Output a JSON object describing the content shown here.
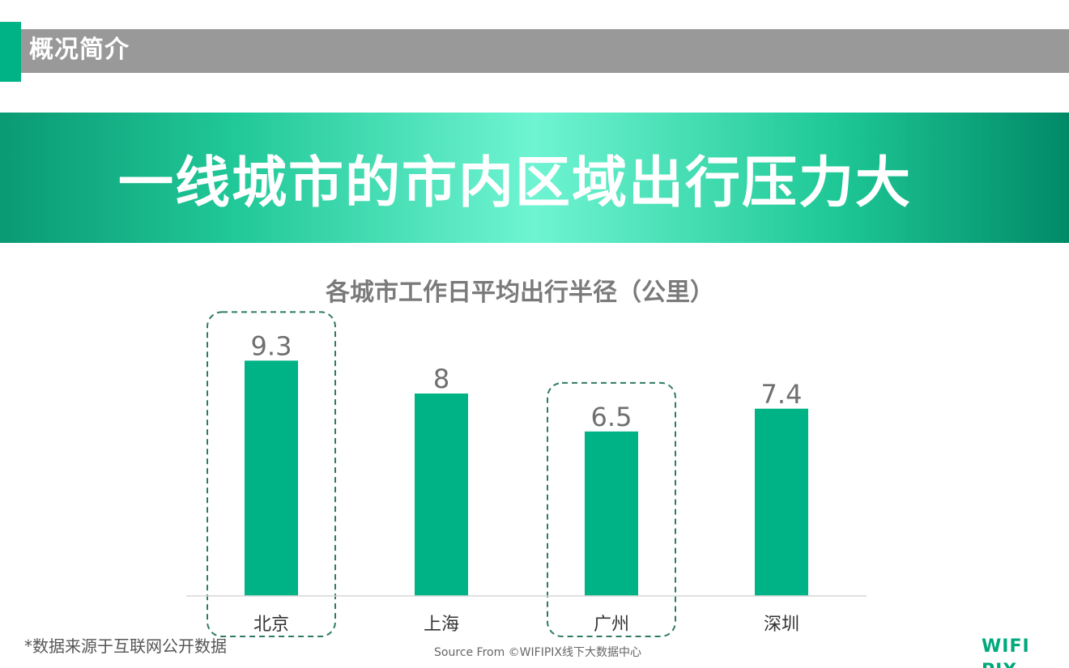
{
  "section": {
    "title": "概况简介"
  },
  "banner": {
    "title": "一线城市的市内区域出行压力大"
  },
  "chart_data": {
    "type": "bar",
    "title": "各城市工作日平均出行半径（公里）",
    "categories": [
      "北京",
      "上海",
      "广州",
      "深圳"
    ],
    "values": [
      9.3,
      8,
      6.5,
      7.4
    ],
    "value_labels": [
      "9.3",
      "8",
      "6.5",
      "7.4"
    ],
    "highlighted": [
      "北京",
      "广州"
    ],
    "ylim": [
      0,
      12.8
    ],
    "grid": false,
    "legend": "none",
    "bar_color": "#00b386",
    "highlight_color": "#2f7a66"
  },
  "footer": {
    "footnote": "*数据来源于互联网公开数据",
    "source": "Source From ©WIFIPIX线下大数据中心",
    "brand": "WIFI PIX"
  }
}
